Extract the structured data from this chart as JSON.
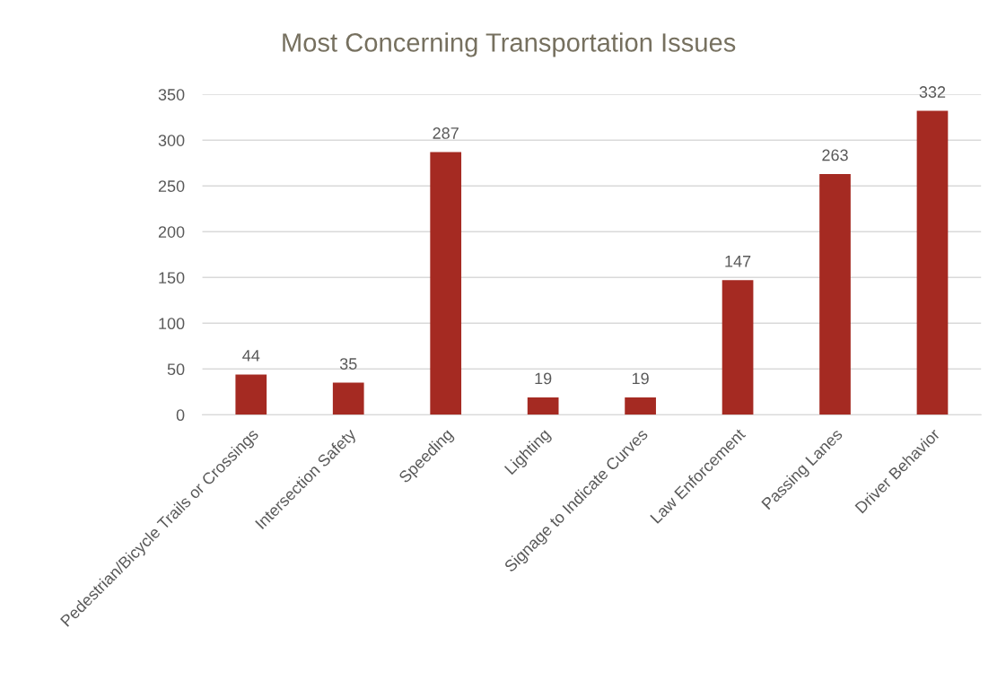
{
  "chart_data": {
    "type": "bar",
    "title": "Most Concerning Transportation Issues",
    "categories": [
      "Pedestrian/Bicycle Trails or Crossings",
      "Intersection Safety",
      "Speeding",
      "Lighting",
      "Signage to Indicate Curves",
      "Law Enforcement",
      "Passing Lanes",
      "Driver Behavior"
    ],
    "values": [
      44,
      35,
      287,
      19,
      19,
      147,
      263,
      332
    ],
    "color": "#a52a22",
    "ylim": [
      0,
      350
    ],
    "yticks": [
      0,
      50,
      100,
      150,
      200,
      250,
      300,
      350
    ],
    "grid": "y",
    "data_labels": true,
    "legend": false
  }
}
